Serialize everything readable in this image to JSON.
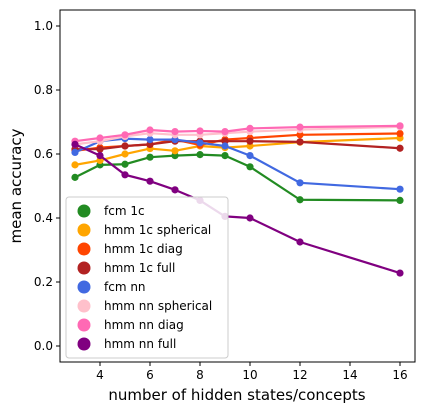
{
  "chart_data": {
    "type": "line",
    "title": "",
    "xlabel": "number of hidden states/concepts",
    "ylabel": "mean accuracy",
    "x": [
      3,
      4,
      5,
      6,
      7,
      8,
      9,
      10,
      12,
      16
    ],
    "xlim": [
      2.4,
      16.6
    ],
    "ylim": [
      -0.05,
      1.05
    ],
    "xticks": [
      4,
      6,
      8,
      10,
      12,
      14,
      16
    ],
    "yticks": [
      0.0,
      0.2,
      0.4,
      0.6,
      0.8,
      1.0
    ],
    "xtick_labels": [
      "4",
      "6",
      "8",
      "10",
      "12",
      "14",
      "16"
    ],
    "ytick_labels": [
      "0.0",
      "0.2",
      "0.4",
      "0.6",
      "0.8",
      "1.0"
    ],
    "grid": false,
    "legend_position": "lower-left",
    "series": [
      {
        "name": "fcm 1c",
        "color": "#228b22",
        "values": [
          0.527,
          0.566,
          0.568,
          0.59,
          0.595,
          0.598,
          0.595,
          0.56,
          0.457,
          0.455
        ]
      },
      {
        "name": "hmm 1c spherical",
        "color": "#ffa500",
        "values": [
          0.566,
          0.58,
          0.6,
          0.617,
          0.61,
          0.625,
          0.62,
          0.625,
          0.637,
          0.65
        ]
      },
      {
        "name": "hmm 1c diag",
        "color": "#ff4500",
        "values": [
          0.61,
          0.62,
          0.625,
          0.63,
          0.645,
          0.628,
          0.645,
          0.65,
          0.66,
          0.664
        ]
      },
      {
        "name": "hmm 1c full",
        "color": "#b22222",
        "values": [
          0.615,
          0.615,
          0.625,
          0.63,
          0.64,
          0.64,
          0.64,
          0.64,
          0.638,
          0.618
        ]
      },
      {
        "name": "fcm nn",
        "color": "#4169e1",
        "values": [
          0.605,
          0.64,
          0.648,
          0.645,
          0.645,
          0.635,
          0.625,
          0.595,
          0.51,
          0.49
        ]
      },
      {
        "name": "hmm nn spherical",
        "color": "#ffc0cb",
        "values": [
          0.63,
          0.64,
          0.655,
          0.665,
          0.66,
          0.66,
          0.665,
          0.67,
          0.676,
          0.685
        ]
      },
      {
        "name": "hmm nn diag",
        "color": "#ff69b4",
        "values": [
          0.64,
          0.65,
          0.66,
          0.675,
          0.67,
          0.672,
          0.67,
          0.68,
          0.684,
          0.688
        ]
      },
      {
        "name": "hmm nn full",
        "color": "#800080",
        "values": [
          0.63,
          0.595,
          0.535,
          0.515,
          0.488,
          0.455,
          0.405,
          0.4,
          0.325,
          0.228
        ]
      }
    ]
  }
}
